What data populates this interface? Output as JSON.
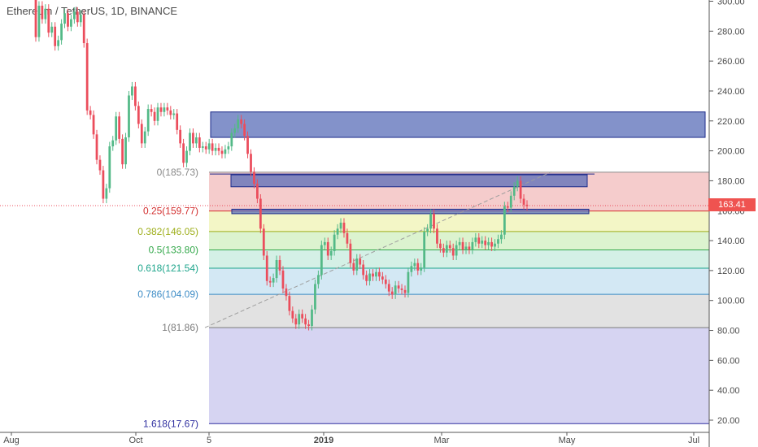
{
  "title": "Ethereum / TetherUS, 1D, BINANCE",
  "last_price": "163.41",
  "colors": {
    "up": "#53b987",
    "down": "#eb4d5c",
    "zone_fill": "#5a6db8",
    "zone_stroke": "#1c2a8a",
    "trendline": "#9e9e9e"
  },
  "chart_data": {
    "type": "candlestick",
    "ylim": [
      15,
      305
    ],
    "y_ticks": [
      "20.00",
      "40.00",
      "60.00",
      "80.00",
      "100.00",
      "120.00",
      "140.00",
      "160.00",
      "180.00",
      "200.00",
      "220.00",
      "240.00",
      "260.00",
      "280.00",
      "300.00"
    ],
    "x_ticks": [
      "Aug",
      "Oct",
      "5",
      "2019",
      "Mar",
      "May",
      "Jul"
    ],
    "fib_levels": [
      {
        "ratio": "0",
        "price": 185.73,
        "label": "0(185.73)",
        "color": "#8a8a8a",
        "fill": "#f5cccc"
      },
      {
        "ratio": "0.25",
        "price": 159.77,
        "label": "0.25(159.77)",
        "color": "#d32f2f",
        "fill": "#f3f6c6"
      },
      {
        "ratio": "0.382",
        "price": 146.05,
        "label": "0.382(146.05)",
        "color": "#9eae1a",
        "fill": "#dcf3cf"
      },
      {
        "ratio": "0.5",
        "price": 133.8,
        "label": "0.5(133.80)",
        "color": "#33a84a",
        "fill": "#d4f0e6"
      },
      {
        "ratio": "0.618",
        "price": 121.54,
        "label": "0.618(121.54)",
        "color": "#1ea58c",
        "fill": "#d3e8f4"
      },
      {
        "ratio": "0.786",
        "price": 104.09,
        "label": "0.786(104.09)",
        "color": "#3d8cc6",
        "fill": "#e2e2e2"
      },
      {
        "ratio": "1",
        "price": 81.86,
        "label": "1(81.86)",
        "color": "#7a7a7a",
        "fill": "#d6d4f2"
      },
      {
        "ratio": "1.618",
        "price": 17.67,
        "label": "1.618(17.67)",
        "color": "#3030a0",
        "fill": ""
      }
    ],
    "zones": [
      {
        "name": "upper-resistance-zone",
        "y_top": 226,
        "y_bottom": 209
      },
      {
        "name": "fib-zero-zone",
        "y_top": 184,
        "y_bottom": 176
      },
      {
        "name": "fib-quarter-zone",
        "y_top": 161,
        "y_bottom": 158
      }
    ],
    "candles": [
      [
        306,
        276
      ],
      [
        276,
        297
      ],
      [
        297,
        288
      ],
      [
        288,
        295
      ],
      [
        295,
        279
      ],
      [
        279,
        283
      ],
      [
        283,
        270
      ],
      [
        270,
        274
      ],
      [
        274,
        285
      ],
      [
        285,
        292
      ],
      [
        292,
        283
      ],
      [
        283,
        288
      ],
      [
        288,
        293
      ],
      [
        293,
        286
      ],
      [
        286,
        291
      ],
      [
        291,
        272
      ],
      [
        272,
        227
      ],
      [
        227,
        224
      ],
      [
        224,
        211
      ],
      [
        211,
        194
      ],
      [
        194,
        187
      ],
      [
        187,
        168
      ],
      [
        168,
        175
      ],
      [
        175,
        203
      ],
      [
        203,
        207
      ],
      [
        207,
        223
      ],
      [
        223,
        208
      ],
      [
        208,
        191
      ],
      [
        191,
        209
      ],
      [
        209,
        237
      ],
      [
        237,
        243
      ],
      [
        243,
        230
      ],
      [
        230,
        218
      ],
      [
        218,
        205
      ],
      [
        205,
        213
      ],
      [
        213,
        228
      ],
      [
        228,
        226
      ],
      [
        226,
        220
      ],
      [
        220,
        229
      ],
      [
        229,
        226
      ],
      [
        226,
        229
      ],
      [
        229,
        227
      ],
      [
        227,
        224
      ],
      [
        224,
        225
      ],
      [
        225,
        214
      ],
      [
        214,
        205
      ],
      [
        205,
        192
      ],
      [
        192,
        200
      ],
      [
        200,
        212
      ],
      [
        212,
        205
      ],
      [
        205,
        209
      ],
      [
        209,
        202
      ],
      [
        202,
        203
      ],
      [
        203,
        201
      ],
      [
        201,
        205
      ],
      [
        205,
        200
      ],
      [
        200,
        202
      ],
      [
        202,
        200
      ],
      [
        200,
        198
      ],
      [
        198,
        201
      ],
      [
        201,
        203
      ],
      [
        203,
        212
      ],
      [
        212,
        215
      ],
      [
        215,
        221
      ],
      [
        221,
        218
      ],
      [
        218,
        210
      ],
      [
        210,
        198
      ],
      [
        198,
        186
      ],
      [
        186,
        178
      ],
      [
        178,
        168
      ],
      [
        168,
        148
      ],
      [
        148,
        130
      ],
      [
        130,
        113
      ],
      [
        113,
        112
      ],
      [
        112,
        115
      ],
      [
        115,
        127
      ],
      [
        127,
        120
      ],
      [
        120,
        108
      ],
      [
        108,
        103
      ],
      [
        103,
        93
      ],
      [
        93,
        88
      ],
      [
        88,
        84
      ],
      [
        84,
        91
      ],
      [
        91,
        88
      ],
      [
        88,
        84
      ],
      [
        84,
        83
      ],
      [
        83,
        94
      ],
      [
        94,
        111
      ],
      [
        111,
        117
      ],
      [
        117,
        137
      ],
      [
        137,
        139
      ],
      [
        139,
        130
      ],
      [
        130,
        133
      ],
      [
        133,
        144
      ],
      [
        144,
        148
      ],
      [
        148,
        152
      ],
      [
        152,
        145
      ],
      [
        145,
        138
      ],
      [
        138,
        125
      ],
      [
        125,
        120
      ],
      [
        120,
        128
      ],
      [
        128,
        124
      ],
      [
        124,
        117
      ],
      [
        117,
        113
      ],
      [
        113,
        118
      ],
      [
        118,
        116
      ],
      [
        116,
        119
      ],
      [
        119,
        116
      ],
      [
        116,
        114
      ],
      [
        114,
        111
      ],
      [
        111,
        106
      ],
      [
        106,
        104
      ],
      [
        104,
        110
      ],
      [
        110,
        108
      ],
      [
        108,
        107
      ],
      [
        107,
        105
      ],
      [
        105,
        119
      ],
      [
        119,
        123
      ],
      [
        123,
        125
      ],
      [
        125,
        120
      ],
      [
        120,
        122
      ],
      [
        122,
        146
      ],
      [
        146,
        148
      ],
      [
        148,
        158
      ],
      [
        158,
        148
      ],
      [
        148,
        138
      ],
      [
        138,
        135
      ],
      [
        135,
        132
      ],
      [
        132,
        137
      ],
      [
        137,
        135
      ],
      [
        135,
        130
      ],
      [
        130,
        137
      ],
      [
        137,
        139
      ],
      [
        139,
        134
      ],
      [
        134,
        136
      ],
      [
        136,
        134
      ],
      [
        134,
        139
      ],
      [
        139,
        142
      ],
      [
        142,
        138
      ],
      [
        138,
        140
      ],
      [
        140,
        137
      ],
      [
        137,
        139
      ],
      [
        139,
        136
      ],
      [
        136,
        138
      ],
      [
        138,
        141
      ],
      [
        141,
        144
      ],
      [
        144,
        163
      ],
      [
        163,
        162
      ],
      [
        162,
        170
      ],
      [
        170,
        176
      ],
      [
        176,
        180
      ],
      [
        180,
        168
      ],
      [
        168,
        164
      ],
      [
        164,
        163
      ]
    ]
  }
}
